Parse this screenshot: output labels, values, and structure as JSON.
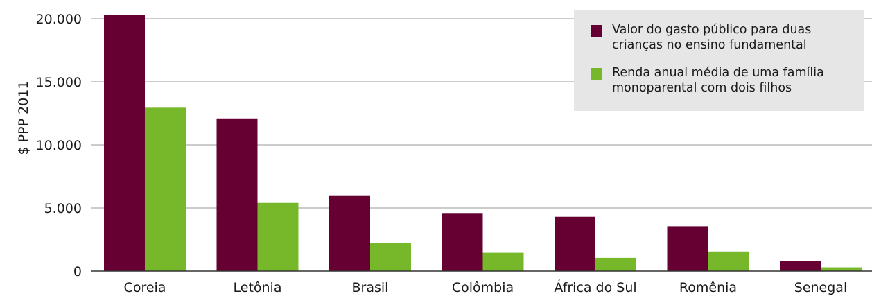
{
  "chart_data": {
    "type": "bar",
    "ylabel": "$ PPP 2011",
    "ylim": [
      0,
      20000
    ],
    "yticks": [
      0,
      5000,
      10000,
      15000,
      20000
    ],
    "ytick_labels": [
      "0",
      "5.000",
      "10.000",
      "15.000",
      "20.000"
    ],
    "categories": [
      "Coreia",
      "Letônia",
      "Brasil",
      "Colômbia",
      "África do Sul",
      "Romênia",
      "Senegal"
    ],
    "series": [
      {
        "name": "Valor do gasto público para duas crianças no ensino fundamental",
        "color": "#660033",
        "values": [
          20300,
          12100,
          5950,
          4600,
          4300,
          3550,
          820
        ]
      },
      {
        "name": "Renda anual média de uma família monoparental com dois filhos",
        "color": "#77b82a",
        "values": [
          12950,
          5400,
          2200,
          1450,
          1050,
          1550,
          300
        ]
      }
    ],
    "grid": true,
    "legend_position": "top-right"
  },
  "legend": {
    "items": [
      {
        "line1": "Valor do gasto público para duas",
        "line2": "crianças no ensino fundamental",
        "color": "#660033"
      },
      {
        "line1": "Renda anual média de uma família",
        "line2": "monoparental com dois filhos",
        "color": "#77b82a"
      }
    ]
  }
}
